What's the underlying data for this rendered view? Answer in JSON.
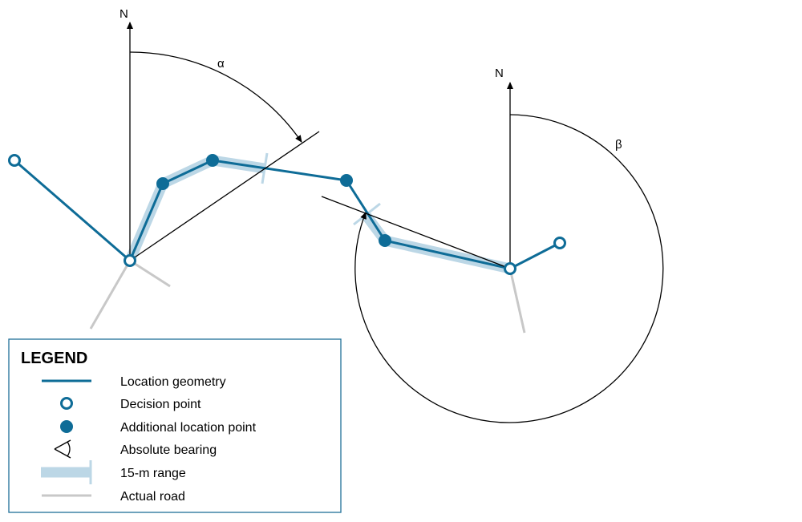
{
  "labels": {
    "north_left": "N",
    "north_right": "N",
    "alpha": "α",
    "beta": "β"
  },
  "legend": {
    "title": "LEGEND",
    "items": [
      {
        "symbol": "location-geometry",
        "label": "Location geometry"
      },
      {
        "symbol": "decision-point",
        "label": "Decision point"
      },
      {
        "symbol": "additional-location-point",
        "label": "Additional location point"
      },
      {
        "symbol": "absolute-bearing",
        "label": "Absolute bearing"
      },
      {
        "symbol": "range-15m",
        "label": "15-m range"
      },
      {
        "symbol": "actual-road",
        "label": "Actual road"
      }
    ]
  },
  "colors": {
    "geometry": "#0e6c97",
    "range": "#bcd7e6",
    "road": "#c8c8c8",
    "annotation": "#000000",
    "legend_border": "#1f6f98"
  }
}
